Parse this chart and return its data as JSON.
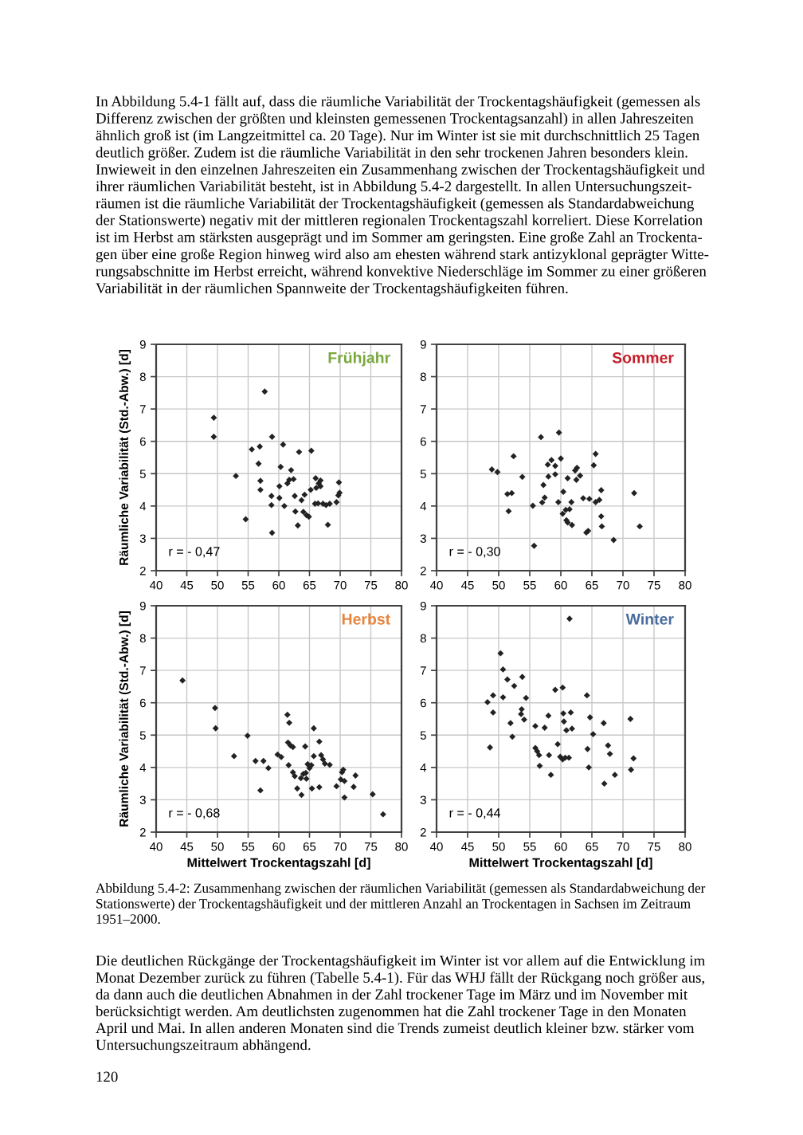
{
  "chart_data": [
    {
      "type": "scatter",
      "title": "Frühjahr",
      "ylabel": "Räumliche Variabilität (Std.-Abw.) [d]",
      "annotations": [
        "r = - 0,47"
      ],
      "color": "#222222",
      "marker": "diamond",
      "grid": true,
      "xlim": [
        40,
        80
      ],
      "xticks": [
        40,
        45,
        50,
        55,
        60,
        65,
        70,
        75,
        80
      ],
      "ylim": [
        2,
        9
      ],
      "yticks": [
        2,
        3,
        4,
        5,
        6,
        7,
        8,
        9
      ],
      "x": [
        49.4,
        49.4,
        53.0,
        54.6,
        57.7,
        55.6,
        56.9,
        56.7,
        57.0,
        57.0,
        58.9,
        58.8,
        58.8,
        58.9,
        60.7,
        60.3,
        60.1,
        60.1,
        60.9,
        61.4,
        61.7,
        62.0,
        62.4,
        62.6,
        62.7,
        63.1,
        63.3,
        63.7,
        64.2,
        64.0,
        64.5,
        64.9,
        65.2,
        65.3,
        65.9,
        66.0,
        66.1,
        66.4,
        66.5,
        66.8,
        66.8,
        67.2,
        67.7,
        68.0,
        68.3,
        69.4,
        69.7,
        69.8,
        69.9
      ],
      "values": [
        6.73,
        6.14,
        4.93,
        3.59,
        7.54,
        5.75,
        5.84,
        5.31,
        4.78,
        4.5,
        6.14,
        4.31,
        4.03,
        3.17,
        5.9,
        5.21,
        4.61,
        4.25,
        4.0,
        4.7,
        4.81,
        5.11,
        4.83,
        4.31,
        3.83,
        3.4,
        5.67,
        4.18,
        4.35,
        3.82,
        3.72,
        3.67,
        4.5,
        5.71,
        4.07,
        4.86,
        4.56,
        4.08,
        4.7,
        4.79,
        4.61,
        4.07,
        4.03,
        3.42,
        4.07,
        4.12,
        4.33,
        4.73,
        4.41
      ]
    },
    {
      "type": "scatter",
      "title": "Sommer",
      "annotations": [
        "r = - 0,30"
      ],
      "color": "#222222",
      "marker": "diamond",
      "grid": true,
      "xlim": [
        40,
        80
      ],
      "xticks": [
        40,
        45,
        50,
        55,
        60,
        65,
        70,
        75,
        80
      ],
      "ylim": [
        2,
        9
      ],
      "yticks": [
        2,
        3,
        4,
        5,
        6,
        7,
        8,
        9
      ],
      "x": [
        48.9,
        49.8,
        51.4,
        52.1,
        51.6,
        52.4,
        53.8,
        55.5,
        55.7,
        56.8,
        57.2,
        57.4,
        57.0,
        58.0,
        57.9,
        58.5,
        59.1,
        59.1,
        59.7,
        60.0,
        59.6,
        60.4,
        60.3,
        60.8,
        60.9,
        61.1,
        61.1,
        61.4,
        61.7,
        61.8,
        62.3,
        62.6,
        62.5,
        63.1,
        63.6,
        64.1,
        64.4,
        64.6,
        65.3,
        65.6,
        65.6,
        66.2,
        66.5,
        66.5,
        66.6,
        68.5,
        71.8,
        72.7
      ],
      "values": [
        5.13,
        5.05,
        4.37,
        4.4,
        3.84,
        5.54,
        4.9,
        4.01,
        2.77,
        6.13,
        4.65,
        4.26,
        4.11,
        4.91,
        5.28,
        5.42,
        5.24,
        4.98,
        6.27,
        5.47,
        4.12,
        4.44,
        3.76,
        3.88,
        3.56,
        3.49,
        4.86,
        3.9,
        4.12,
        3.41,
        5.1,
        5.18,
        4.81,
        4.94,
        4.24,
        3.18,
        3.23,
        4.22,
        5.26,
        5.61,
        4.12,
        4.19,
        4.49,
        3.68,
        3.37,
        2.95,
        4.4,
        3.37
      ]
    },
    {
      "type": "scatter",
      "title": "Herbst",
      "xlabel": "Mittelwert Trockentagszahl [d]",
      "ylabel": "Räumliche Variabilität (Std.-Abw.) [d]",
      "annotations": [
        "r = - 0,68"
      ],
      "color": "#222222",
      "marker": "diamond",
      "grid": true,
      "xlim": [
        40,
        80
      ],
      "xticks": [
        40,
        45,
        50,
        55,
        60,
        65,
        70,
        75,
        80
      ],
      "ylim": [
        2,
        9
      ],
      "yticks": [
        2,
        3,
        4,
        5,
        6,
        7,
        8,
        9
      ],
      "x": [
        44.3,
        49.6,
        49.7,
        52.7,
        54.9,
        56.2,
        57.0,
        57.5,
        58.3,
        59.8,
        60.4,
        61.4,
        61.7,
        61.5,
        61.9,
        62.3,
        61.6,
        62.3,
        62.6,
        63.0,
        63.6,
        63.7,
        64.0,
        64.4,
        64.5,
        64.3,
        64.7,
        65.0,
        65.3,
        65.7,
        65.4,
        65.7,
        66.6,
        66.6,
        66.9,
        67.2,
        67.5,
        68.3,
        69.4,
        70.1,
        70.3,
        70.5,
        70.7,
        70.7,
        72.2,
        72.5,
        75.3,
        77.0
      ],
      "values": [
        6.69,
        5.84,
        5.21,
        4.35,
        4.98,
        4.2,
        3.29,
        4.2,
        3.98,
        4.4,
        4.32,
        5.63,
        5.38,
        4.77,
        4.68,
        4.63,
        4.07,
        3.85,
        3.73,
        3.35,
        3.67,
        3.15,
        3.8,
        3.83,
        3.65,
        4.65,
        4.1,
        3.98,
        4.07,
        5.21,
        3.35,
        4.35,
        3.39,
        4.8,
        4.38,
        4.25,
        4.12,
        4.08,
        3.42,
        3.63,
        3.85,
        3.93,
        3.58,
        3.07,
        3.4,
        3.75,
        3.17,
        2.55
      ]
    },
    {
      "type": "scatter",
      "title": "Winter",
      "xlabel": "Mittelwert Trockentagszahl [d]",
      "annotations": [
        "r = - 0,44"
      ],
      "color": "#222222",
      "marker": "diamond",
      "grid": true,
      "xlim": [
        40,
        80
      ],
      "xticks": [
        40,
        45,
        50,
        55,
        60,
        65,
        70,
        75,
        80
      ],
      "ylim": [
        2,
        9
      ],
      "yticks": [
        2,
        3,
        4,
        5,
        6,
        7,
        8,
        9
      ],
      "x": [
        48.2,
        48.6,
        49.1,
        49.1,
        50.3,
        50.7,
        50.7,
        51.4,
        51.9,
        52.2,
        52.5,
        53.8,
        53.7,
        53.6,
        54.1,
        54.4,
        55.9,
        55.9,
        56.2,
        56.5,
        56.6,
        57.4,
        58.0,
        58.1,
        58.4,
        59.1,
        59.5,
        60.3,
        59.9,
        60.3,
        60.4,
        60.5,
        60.9,
        60.7,
        61.3,
        61.4,
        61.6,
        61.8,
        64.2,
        64.3,
        64.5,
        64.7,
        65.2,
        66.9,
        67.0,
        67.6,
        67.9,
        68.7,
        71.2,
        71.3,
        71.7
      ],
      "values": [
        6.02,
        4.62,
        6.23,
        5.7,
        7.53,
        7.03,
        6.17,
        6.72,
        5.37,
        4.95,
        6.52,
        6.8,
        5.8,
        5.65,
        5.48,
        6.15,
        5.28,
        4.6,
        4.5,
        4.38,
        4.05,
        5.23,
        5.6,
        4.38,
        3.77,
        6.4,
        4.72,
        6.47,
        4.33,
        4.25,
        5.67,
        5.42,
        5.15,
        4.3,
        4.3,
        8.6,
        5.7,
        5.2,
        6.23,
        4.57,
        4.0,
        5.55,
        5.03,
        5.37,
        3.5,
        4.68,
        4.42,
        3.77,
        5.5,
        3.93,
        4.28
      ]
    },
    {
      "type": "other",
      "annotations": [
        "In Abbildung 5.4-1 fällt auf, dass die räumliche Variabilität der Trockentagshäufigkeit (gemessen als\nDifferenz zwischen der größten und kleinsten gemessenen Trockentagsanzahl) in allen Jahreszeiten\nähnlich groß ist (im Langzeitmittel ca. 20 Tage). Nur im Winter ist sie mit durchschnittlich 25 Tagen\ndeutlich größer. Zudem ist die räumliche Variabilität in den sehr trockenen Jahren besonders klein.\nInwieweit in den einzelnen Jahreszeiten ein Zusammenhang zwischen der Trockentagshäufigkeit und\nihrer räumlichen Variabilität besteht, ist in Abbildung 5.4-2 dargestellt. In allen Untersuchungszeit-\nräumen ist die räumliche Variabilität der Trockentagshäufigkeit (gemessen als Standardabweichung\nder Stationswerte) negativ mit der mittleren regionalen Trockentagszahl korreliert. Diese Korrelation\nist im Herbst am stärksten ausgeprägt und im Sommer am geringsten. Eine große Zahl an Trockenta-\ngen über eine große Region hinweg wird also am ehesten während stark antizyklonal geprägter Witte-\nrungsabschnitte im Herbst erreicht, während konvektive Niederschläge im Sommer zu einer größeren\nVariabilität in der räumlichen Spannweite der Trockentagshäufigkeiten führen.",
        "Abbildung 5.4-2: Zusammenhang zwischen der räumlichen Variabilität (gemessen als Standardabweichung der\nStationswerte) der Trockentagshäufigkeit und der mittleren Anzahl an Trockentagen in Sachsen im Zeitraum\n1951–2000.",
        "Die deutlichen Rückgänge der Trockentagshäufigkeit im Winter ist vor allem auf die Entwicklung im\nMonat Dezember zurück zu führen (Tabelle 5.4-1). Für das WHJ fällt der Rückgang noch größer aus,\nda dann auch die deutlichen Abnahmen in der Zahl trockener Tage im März und im November mit\nberücksichtigt werden. Am deutlichsten zugenommen hat die Zahl trockener Tage in den Monaten\nApril und Mai. In allen anderen Monaten sind die Trends zumeist deutlich kleiner bzw. stärker vom\nUntersuchungszeitraum abhängend.",
        "120"
      ]
    }
  ]
}
